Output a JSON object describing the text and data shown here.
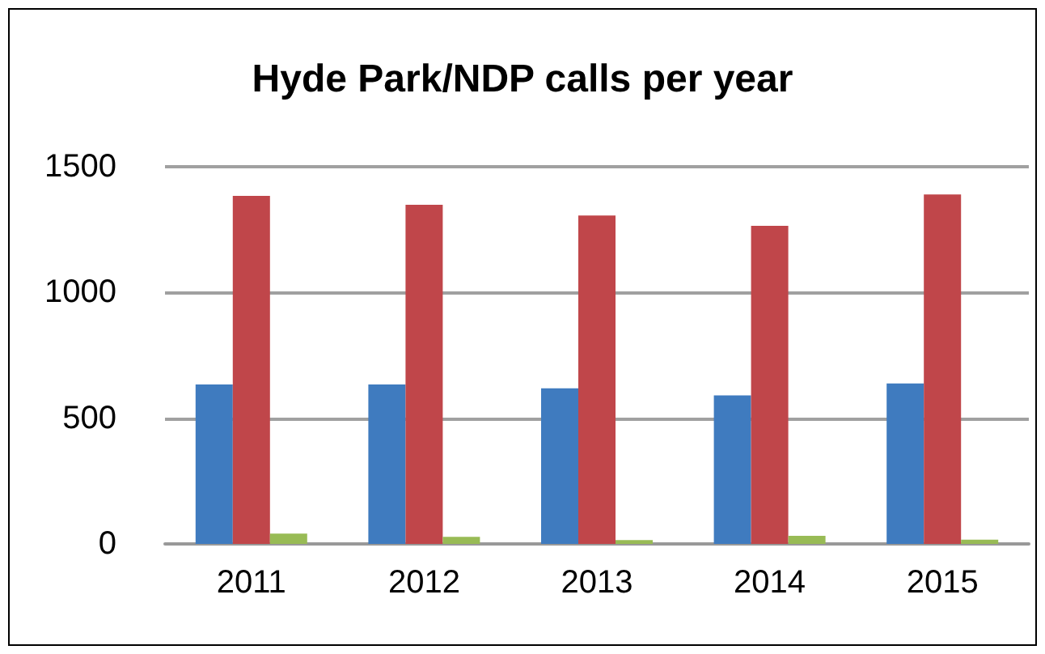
{
  "chart_data": {
    "type": "bar",
    "title": "Hyde Park/NDP calls per year",
    "categories": [
      "2011",
      "2012",
      "2013",
      "2014",
      "2015"
    ],
    "series": [
      {
        "color": "#3f7bbf",
        "values": [
          634,
          634,
          619,
          591,
          638
        ]
      },
      {
        "color": "#c0464a",
        "values": [
          1384,
          1349,
          1306,
          1265,
          1390
        ]
      },
      {
        "color": "#98bb55",
        "values": [
          41,
          28,
          15,
          32,
          17
        ]
      }
    ],
    "ylim": [
      0,
      1500
    ],
    "yticks": [
      0,
      500,
      1000,
      1500
    ],
    "grid": "y"
  }
}
